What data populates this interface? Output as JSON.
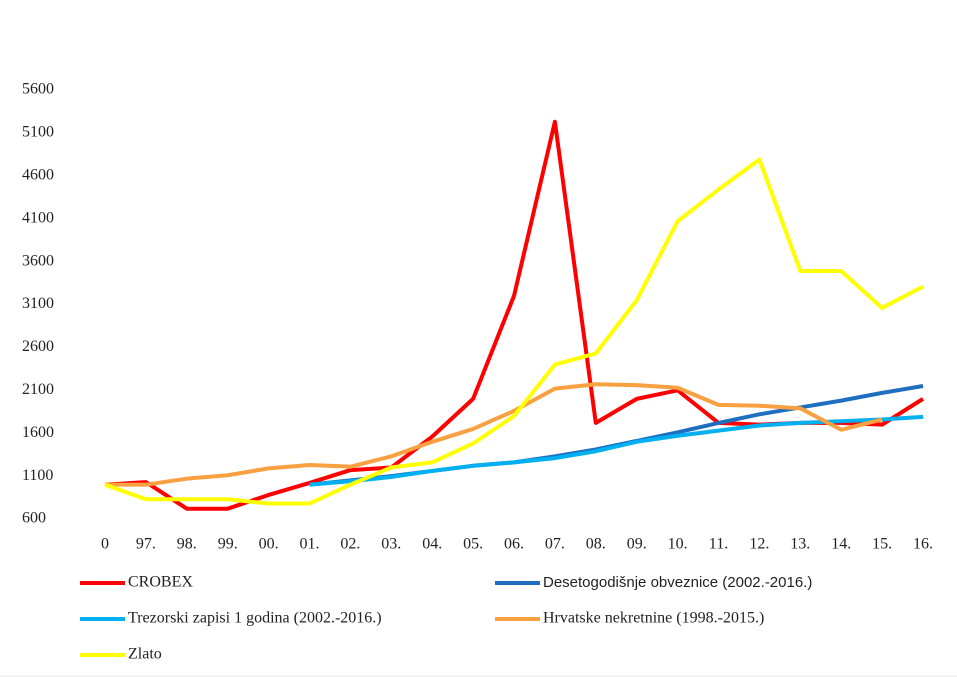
{
  "chart_data": {
    "type": "line",
    "categories": [
      "0",
      "97.",
      "98.",
      "99.",
      "00.",
      "01.",
      "02.",
      "03.",
      "04.",
      "05.",
      "06.",
      "07.",
      "08.",
      "09.",
      "10.",
      "11.",
      "12.",
      "13.",
      "14.",
      "15.",
      "16."
    ],
    "ylim": [
      600,
      5600
    ],
    "yticks": [
      600,
      1100,
      1600,
      2100,
      2600,
      3100,
      3600,
      4100,
      4600,
      5100,
      5600
    ],
    "grid": false,
    "series": [
      {
        "name": "CROBEX",
        "color": "#ff0000",
        "values": [
          1000,
          1030,
          720,
          720,
          880,
          1020,
          1170,
          1200,
          1560,
          2000,
          3200,
          5230,
          1720,
          2000,
          2100,
          1720,
          1700,
          1720,
          1720,
          1700,
          2000
        ]
      },
      {
        "name": "Desetogodišnje obveznice (2002.-2016.)",
        "color": "#1f6fc0",
        "values": [
          null,
          null,
          null,
          null,
          null,
          1000,
          1050,
          1100,
          1160,
          1220,
          1260,
          1330,
          1410,
          1510,
          1610,
          1720,
          1820,
          1900,
          1980,
          2070,
          2150
        ]
      },
      {
        "name": "Trezorski zapisi 1 godina (2002.-2016.)",
        "color": "#00b0f0",
        "values": [
          null,
          null,
          null,
          null,
          null,
          1000,
          1040,
          1090,
          1160,
          1220,
          1260,
          1310,
          1390,
          1500,
          1570,
          1630,
          1690,
          1720,
          1740,
          1760,
          1790
        ]
      },
      {
        "name": "Hrvatske nekretnine (1998.-2015.)",
        "color": "#f9a040",
        "values": [
          1000,
          1000,
          1070,
          1110,
          1190,
          1230,
          1210,
          1330,
          1500,
          1650,
          1860,
          2120,
          2170,
          2160,
          2130,
          1930,
          1920,
          1890,
          1640,
          1760,
          null
        ]
      },
      {
        "name": "Zlato",
        "color": "#ffff00",
        "values": [
          1000,
          830,
          830,
          830,
          780,
          780,
          1000,
          1200,
          1260,
          1480,
          1800,
          2400,
          2530,
          3150,
          4070,
          4440,
          4790,
          3490,
          3490,
          3060,
          3310
        ]
      }
    ]
  }
}
